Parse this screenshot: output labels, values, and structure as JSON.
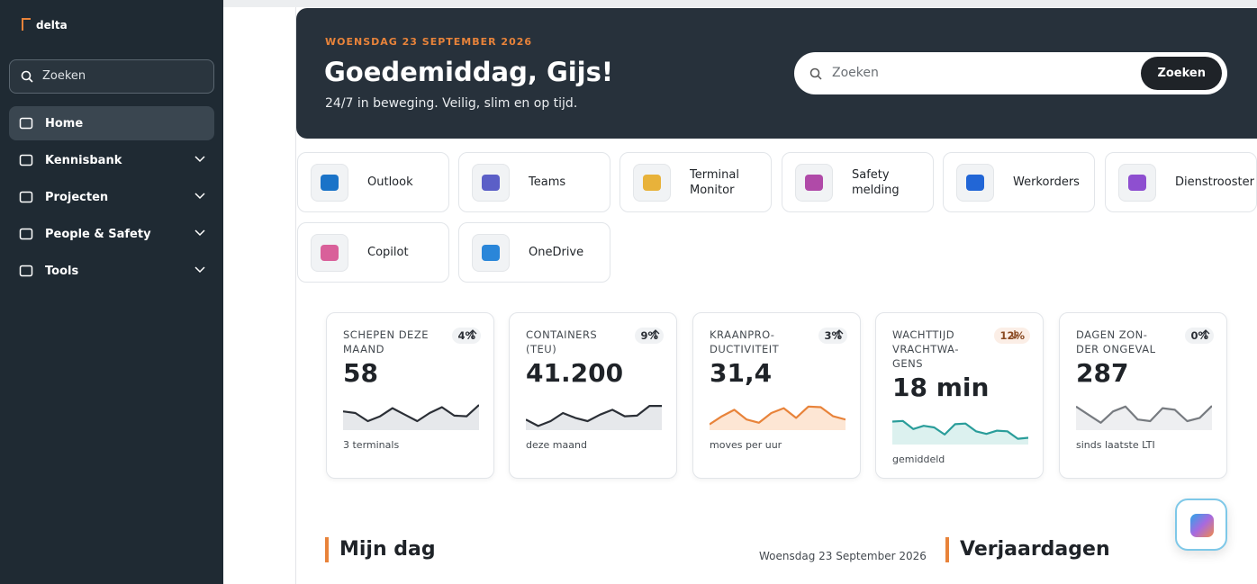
{
  "sidebar": {
    "logo": "delta",
    "search": "Zoeken",
    "nav": [
      {
        "label": "Home",
        "active": true,
        "expandable": false
      },
      {
        "label": "Kennisbank",
        "active": false,
        "expandable": true
      },
      {
        "label": "Projecten",
        "active": false,
        "expandable": true
      },
      {
        "label": "People & Safety",
        "active": false,
        "expandable": true
      },
      {
        "label": "Tools",
        "active": false,
        "expandable": true
      }
    ]
  },
  "header": {
    "date": "WOENSDAG 23 SEPTEMBER 2026",
    "greeting": "Goedemiddag, Gijs!",
    "tagline": "24/7 in beweging. Veilig, slim en op tijd.",
    "search_placeholder": "Zoeken",
    "search_button": "Zoeken"
  },
  "apps": [
    {
      "label": "Outlook",
      "color": "#1a73c8"
    },
    {
      "label": "Teams",
      "color": "#5b5fc7"
    },
    {
      "label": "Terminal Monitor",
      "color": "#e8b23a"
    },
    {
      "label": "Safety melding",
      "color": "#b04aa8"
    },
    {
      "label": "Werkorders",
      "color": "#2266d6"
    },
    {
      "label": "Dienstrooster",
      "color": "#8e4fd0"
    },
    {
      "label": "Copilot",
      "color": "#d9609a"
    },
    {
      "label": "OneDrive",
      "color": "#2a86d9"
    }
  ],
  "kpis": [
    {
      "title": "SCHEPEN DEZE MAAND",
      "change": "4%",
      "direction": "up",
      "value": "58",
      "note": "3 terminals",
      "color": "#2b2f36",
      "fill": "#e6e8eb",
      "spark": [
        55,
        50,
        25,
        40,
        65,
        45,
        25,
        50,
        68,
        42,
        40,
        75
      ]
    },
    {
      "title": "CONTAINERS (TEU)",
      "change": "9%",
      "direction": "up",
      "value": "41.200",
      "note": "deze maand",
      "color": "#2b2f36",
      "fill": "#e6e8eb",
      "spark": [
        30,
        10,
        25,
        50,
        35,
        25,
        45,
        60,
        40,
        42,
        72,
        72
      ]
    },
    {
      "title": "KRAANPRO­DUCTIVITEIT",
      "change": "3%",
      "direction": "up",
      "value": "31,4",
      "note": "moves per uur",
      "color": "#e8833a",
      "fill": "#fde6d4",
      "spark": [
        15,
        40,
        60,
        30,
        20,
        50,
        65,
        35,
        70,
        68,
        40,
        30
      ]
    },
    {
      "title": "WACHTTIJD VRACHTWA­GENS",
      "change": "12%",
      "direction": "down",
      "value": "18 min",
      "note": "gemiddeld",
      "color": "#2a9d9a",
      "fill": "#dcf1ef",
      "spark": [
        68,
        70,
        45,
        55,
        50,
        28,
        60,
        62,
        38,
        30,
        40,
        38,
        15,
        18
      ]
    },
    {
      "title": "DAGEN ZON­DER ONGEVAL",
      "change": "0%",
      "direction": "up",
      "value": "287",
      "note": "sinds laatste LTI",
      "color": "#777b80",
      "fill": "#eeeff1",
      "spark": [
        70,
        45,
        20,
        55,
        70,
        30,
        25,
        65,
        60,
        25,
        35,
        72
      ]
    }
  ],
  "sections": {
    "my_day": "Mijn dag",
    "my_day_date": "Woensdag 23 September 2026",
    "birthdays": "Verjaardagen"
  }
}
